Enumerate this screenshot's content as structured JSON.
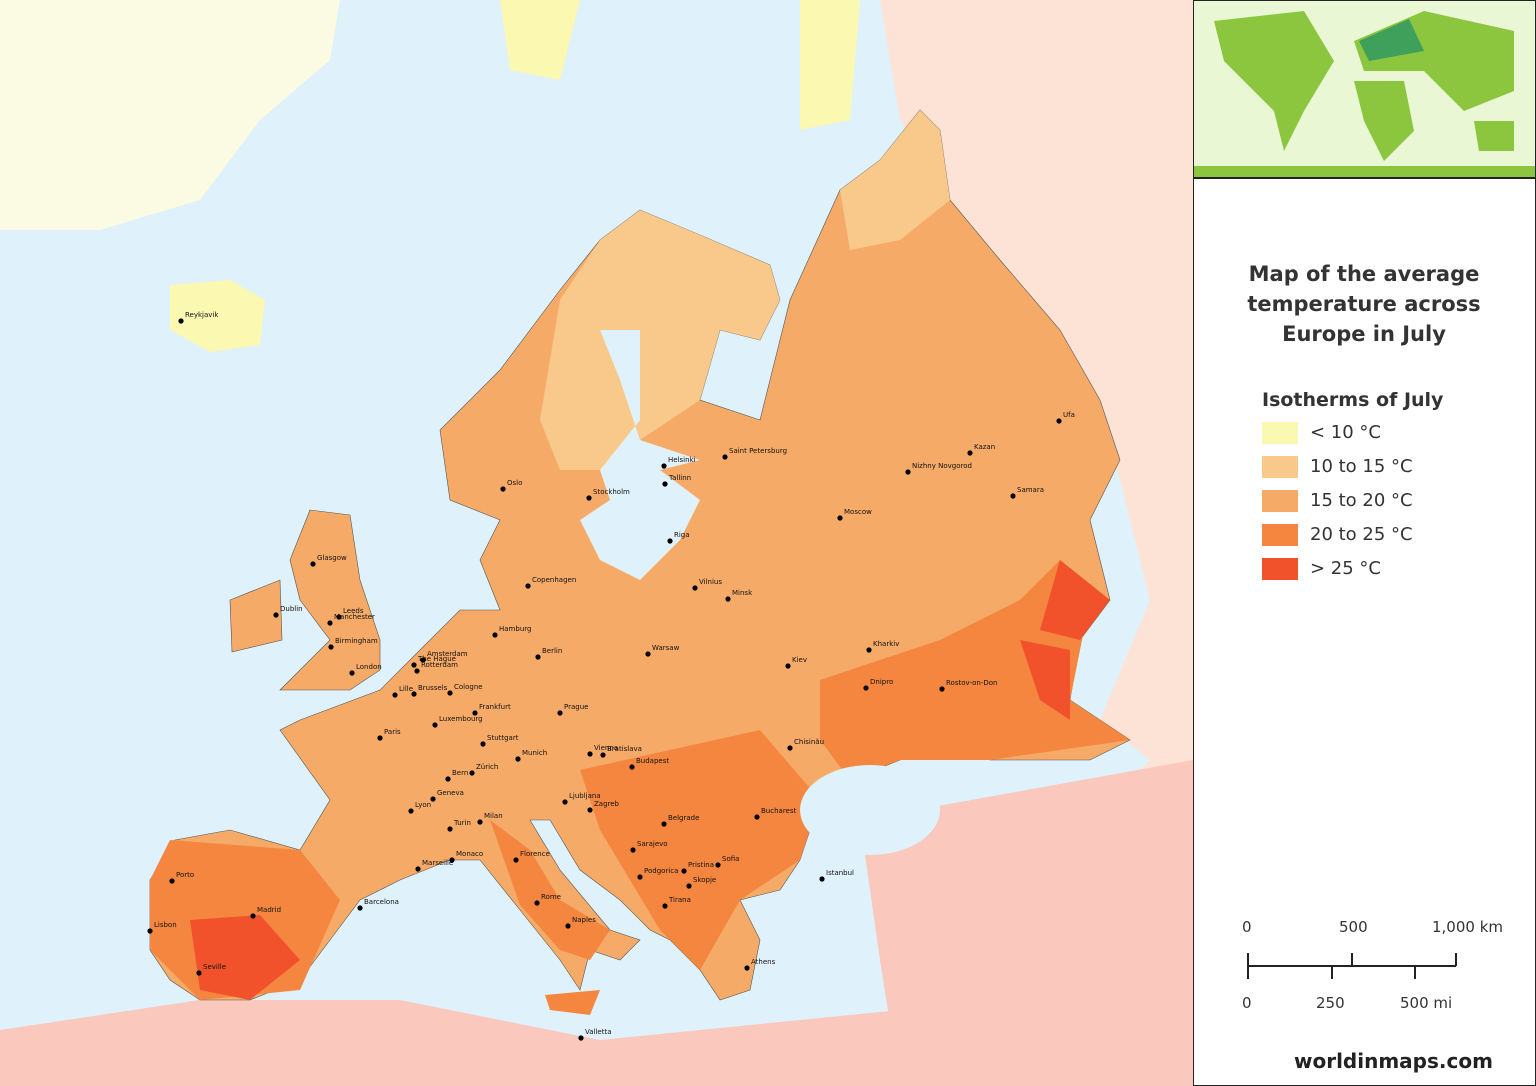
{
  "title": "Map of the average temperature across Europe in July",
  "legend": {
    "title": "Isotherms of July",
    "items": [
      {
        "label": "< 10 °C",
        "color": "#fbf8b2"
      },
      {
        "label": "10 to 15 °C",
        "color": "#f8c98a"
      },
      {
        "label": "15 to 20 °C",
        "color": "#f6aa68"
      },
      {
        "label": "20 to 25 °C",
        "color": "#f4863f"
      },
      {
        "label": "> 25 °C",
        "color": "#f1522b"
      }
    ]
  },
  "scale": {
    "km": [
      "0",
      "500",
      "1,000 km"
    ],
    "mi": [
      "0",
      "250",
      "500 mi"
    ]
  },
  "website": "worldinmaps.com",
  "cities": [
    "Reykjavik",
    "Glasgow",
    "Dublin",
    "Leeds",
    "Manchester",
    "Birmingham",
    "London",
    "The Hague",
    "Amsterdam",
    "Rotterdam",
    "Lille",
    "Brussels",
    "Cologne",
    "Luxembourg",
    "Paris",
    "Frankfurt",
    "Stuttgart",
    "Hamburg",
    "Berlin",
    "Prague",
    "Munich",
    "Zürich",
    "Bern",
    "Geneva",
    "Lyon",
    "Turin",
    "Milan",
    "Marseille",
    "Monaco",
    "Barcelona",
    "Madrid",
    "Porto",
    "Lisbon",
    "Seville",
    "Florence",
    "Rome",
    "Naples",
    "Valletta",
    "Vienna",
    "Bratislava",
    "Budapest",
    "Ljubljana",
    "Zagreb",
    "Belgrade",
    "Sarajevo",
    "Podgorica",
    "Pristina",
    "Skopje",
    "Tirana",
    "Sofia",
    "Athens",
    "Bucharest",
    "Istanbul",
    "Chisinău",
    "Oslo",
    "Stockholm",
    "Copenhagen",
    "Helsinki",
    "Tallinn",
    "Riga",
    "Vilnius",
    "Minsk",
    "Warsaw",
    "Kiev",
    "Kharkiv",
    "Dnipro",
    "Rostov-on-Don",
    "Saint Petersburg",
    "Moscow",
    "Nizhny Novgorod",
    "Kazan",
    "Samara",
    "Ufa"
  ]
}
